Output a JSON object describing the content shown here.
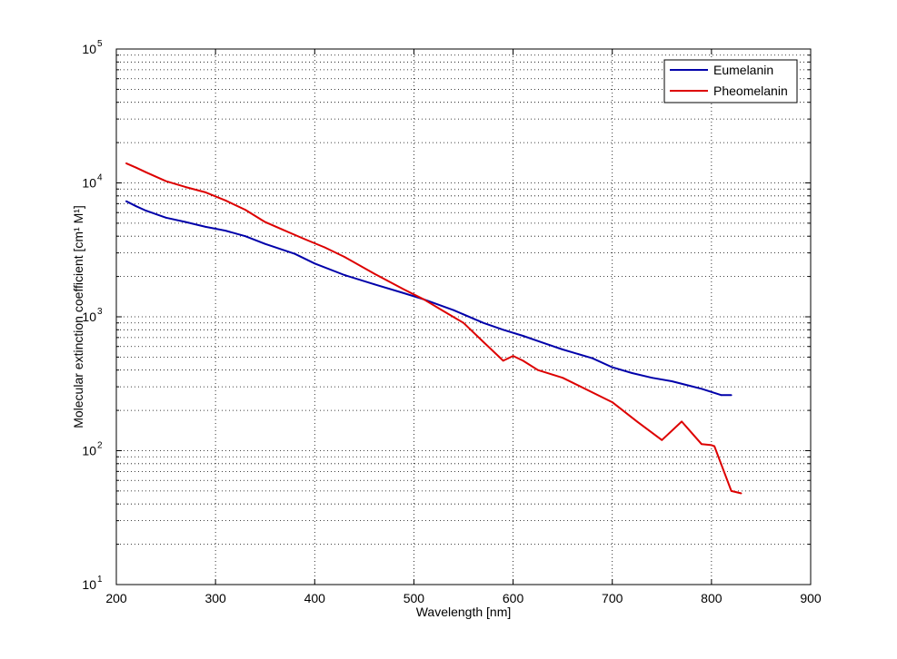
{
  "chart_data": {
    "type": "line",
    "xlabel": "Wavelength [nm]",
    "ylabel": "Molecular extinction coefficient [cm¹ M¹]",
    "xlim": [
      200,
      900
    ],
    "ylim": [
      10,
      100000
    ],
    "yscale": "log",
    "x_ticks": [
      200,
      300,
      400,
      500,
      600,
      700,
      800,
      900
    ],
    "y_ticks": [
      {
        "base": "10",
        "exp": "1",
        "value": 10
      },
      {
        "base": "10",
        "exp": "2",
        "value": 100
      },
      {
        "base": "10",
        "exp": "3",
        "value": 1000
      },
      {
        "base": "10",
        "exp": "4",
        "value": 10000
      },
      {
        "base": "10",
        "exp": "5",
        "value": 100000
      }
    ],
    "grid": true,
    "legend_position": "top-right",
    "series": [
      {
        "name": "Eumelanin",
        "color": "#0000aa",
        "x": [
          210,
          220,
          230,
          250,
          270,
          290,
          310,
          330,
          350,
          380,
          400,
          430,
          460,
          490,
          510,
          540,
          570,
          590,
          610,
          630,
          650,
          680,
          700,
          720,
          740,
          760,
          790,
          810,
          820
        ],
        "y": [
          7300,
          6700,
          6200,
          5500,
          5100,
          4700,
          4400,
          4000,
          3500,
          2950,
          2500,
          2050,
          1750,
          1500,
          1350,
          1120,
          900,
          800,
          720,
          640,
          570,
          490,
          420,
          380,
          350,
          330,
          290,
          260,
          260
        ]
      },
      {
        "name": "Pheomelanin",
        "color": "#dd0000",
        "x": [
          210,
          220,
          230,
          250,
          270,
          290,
          310,
          330,
          350,
          370,
          390,
          410,
          430,
          460,
          490,
          510,
          530,
          550,
          570,
          590,
          600,
          610,
          625,
          650,
          700,
          725,
          750,
          770,
          790,
          800,
          803,
          820,
          830
        ],
        "y": [
          14000,
          13000,
          12000,
          10300,
          9300,
          8500,
          7400,
          6300,
          5100,
          4400,
          3800,
          3300,
          2800,
          2100,
          1600,
          1350,
          1100,
          900,
          650,
          470,
          510,
          470,
          400,
          350,
          230,
          165,
          120,
          165,
          112,
          110,
          108,
          50,
          48
        ]
      }
    ]
  }
}
